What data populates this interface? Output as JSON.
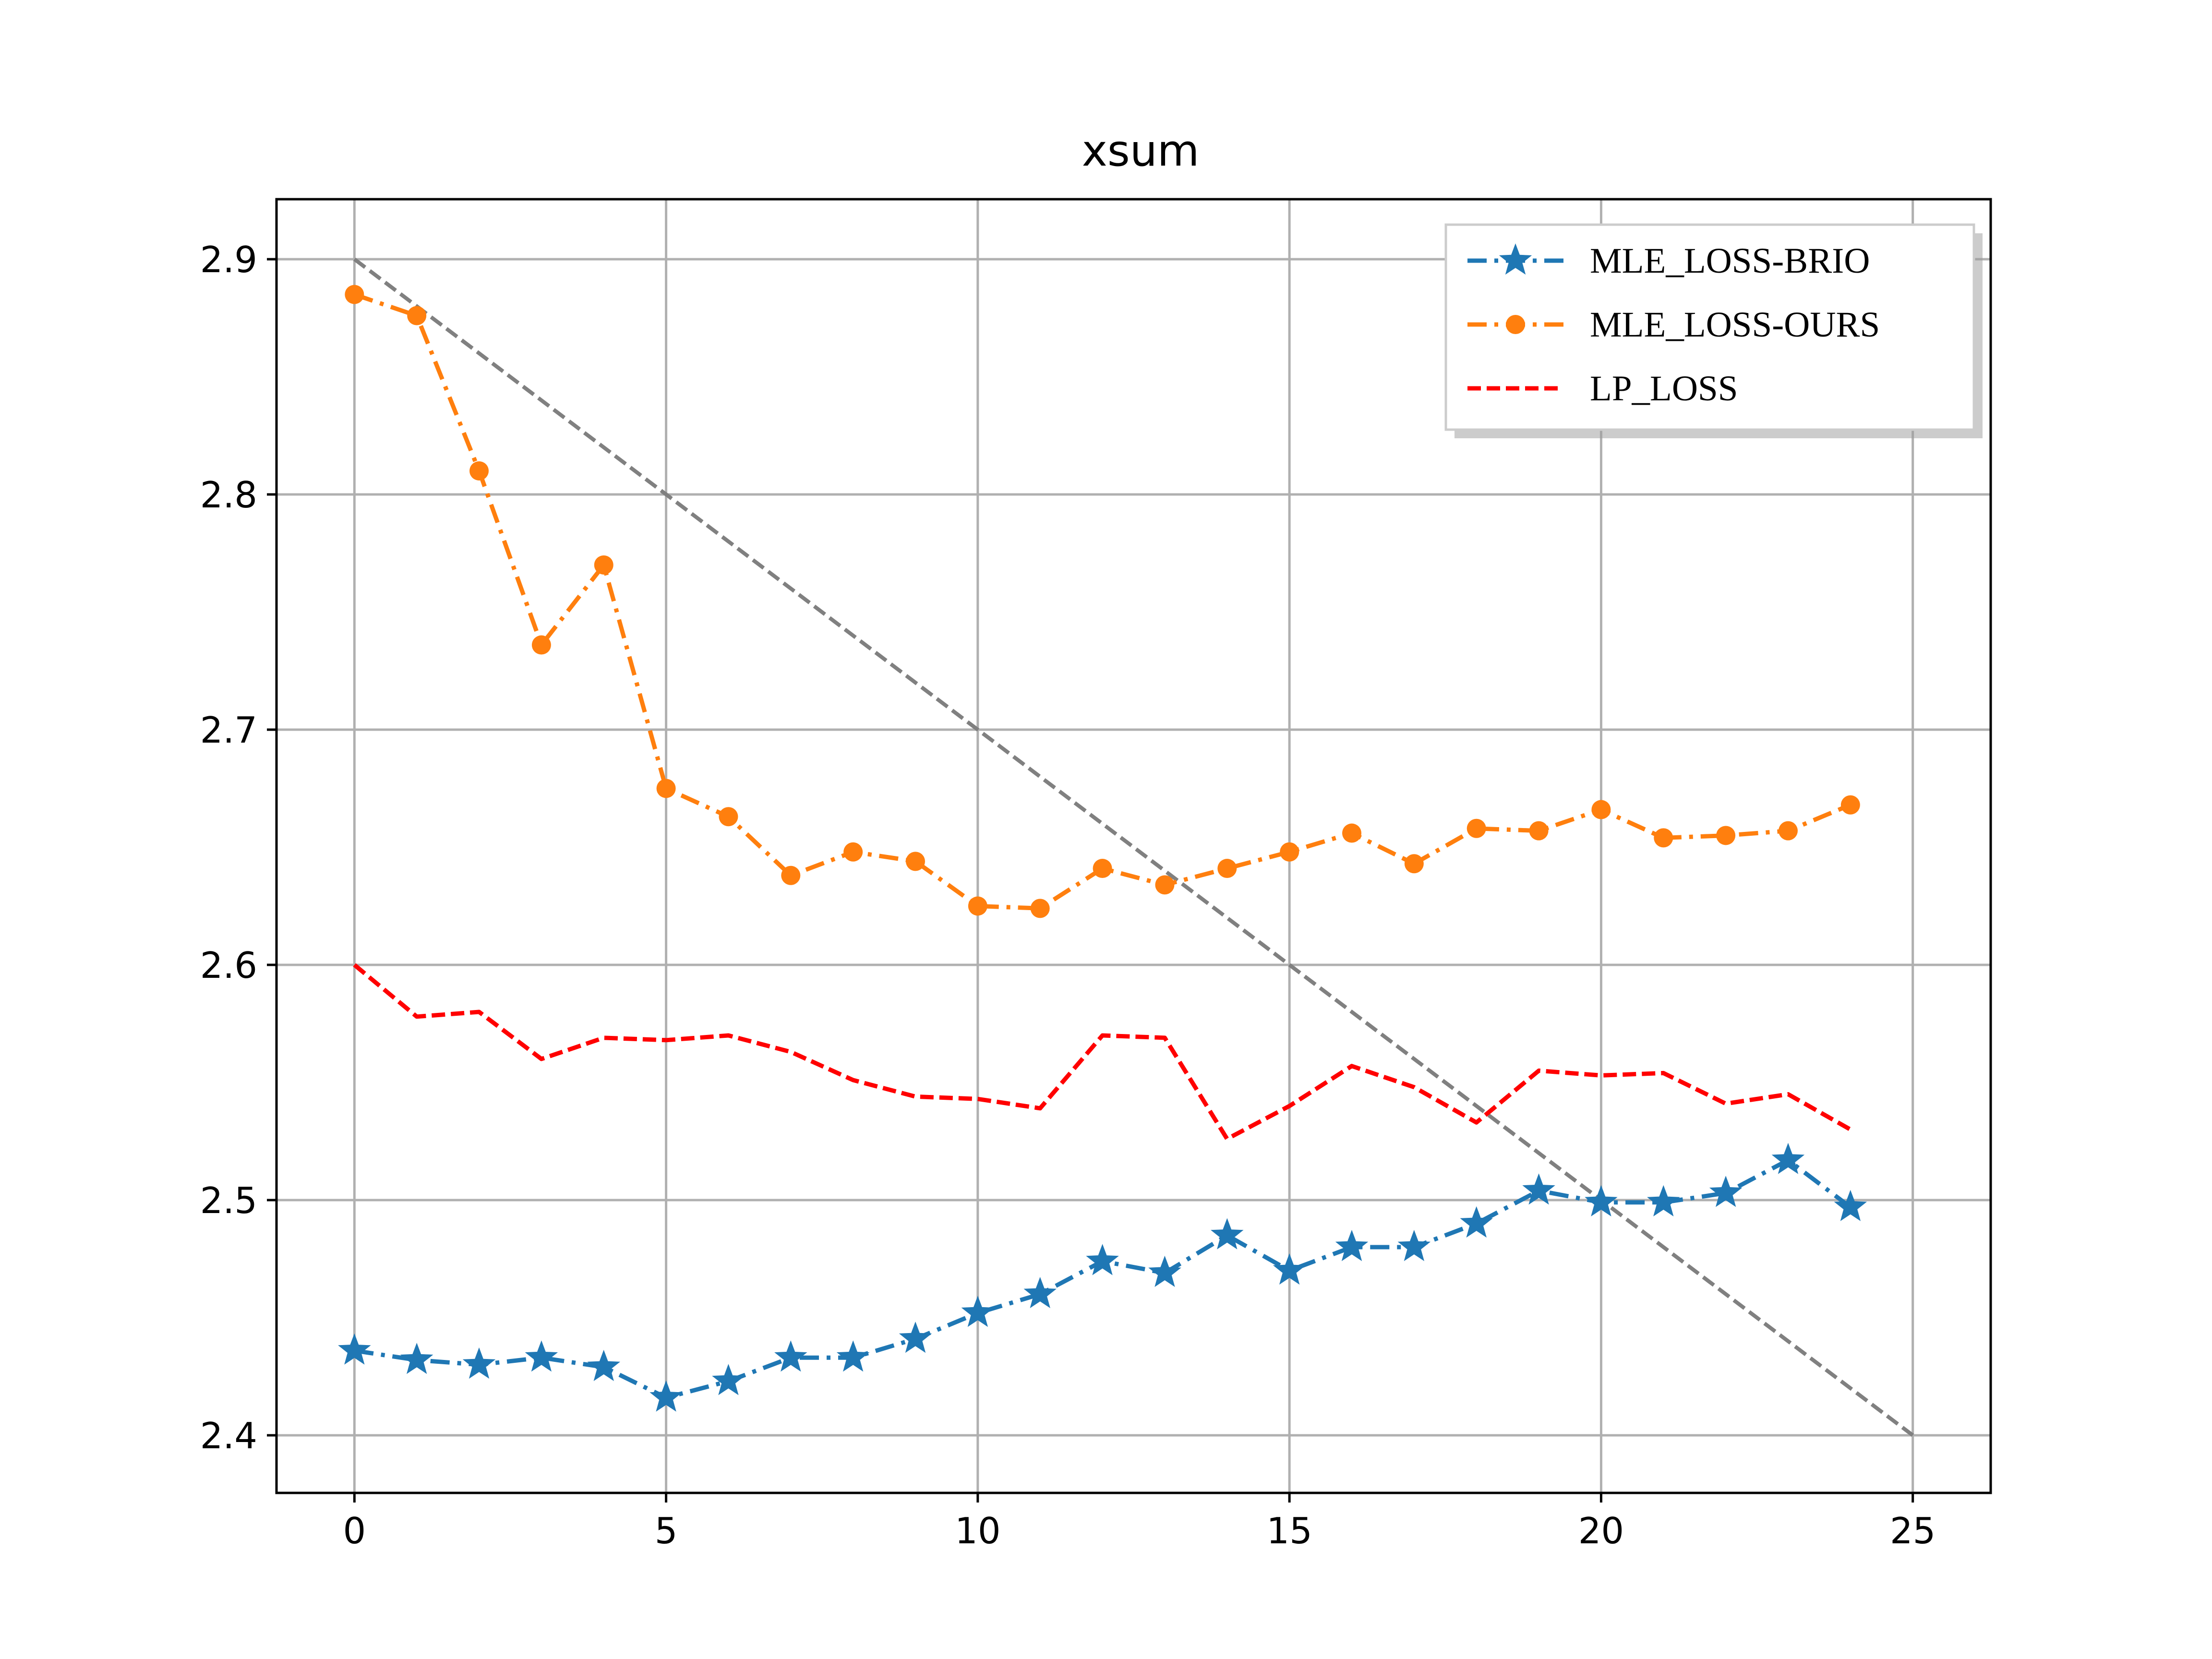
{
  "chart_data": {
    "type": "line",
    "title": "xsum",
    "xlabel": "",
    "ylabel": "",
    "xlim": [
      -1.25,
      26.25
    ],
    "ylim": [
      2.3755,
      2.9255
    ],
    "xticks": [
      0,
      5,
      10,
      15,
      20,
      25
    ],
    "yticks": [
      2.4,
      2.5,
      2.6,
      2.7,
      2.8,
      2.9
    ],
    "xtick_labels": [
      "0",
      "5",
      "10",
      "15",
      "20",
      "25"
    ],
    "ytick_labels": [
      "2.4",
      "2.5",
      "2.6",
      "2.7",
      "2.8",
      "2.9"
    ],
    "grid": true,
    "legend_position": "top-right",
    "x": [
      0,
      1,
      2,
      3,
      4,
      5,
      6,
      7,
      8,
      9,
      10,
      11,
      12,
      13,
      14,
      15,
      16,
      17,
      18,
      19,
      20,
      21,
      22,
      23,
      24
    ],
    "series": [
      {
        "name": "MLE_LOSS-BRIO",
        "color": "#1f77b4",
        "marker": "star",
        "linestyle": "dash-dot",
        "values": [
          2.436,
          2.432,
          2.43,
          2.433,
          2.429,
          2.416,
          2.423,
          2.433,
          2.433,
          2.441,
          2.452,
          2.46,
          2.474,
          2.469,
          2.485,
          2.47,
          2.48,
          2.48,
          2.49,
          2.504,
          2.499,
          2.499,
          2.503,
          2.517,
          2.497
        ]
      },
      {
        "name": "MLE_LOSS-OURS",
        "color": "#ff7f0e",
        "marker": "circle",
        "linestyle": "dash-dot",
        "values": [
          2.885,
          2.876,
          2.81,
          2.736,
          2.77,
          2.675,
          2.663,
          2.638,
          2.648,
          2.644,
          2.625,
          2.624,
          2.641,
          2.634,
          2.641,
          2.648,
          2.656,
          2.643,
          2.658,
          2.657,
          2.666,
          2.654,
          2.655,
          2.657,
          2.668
        ]
      },
      {
        "name": "LP_LOSS",
        "color": "#ff0000",
        "marker": "none",
        "linestyle": "dashed",
        "values": [
          2.6,
          2.578,
          2.58,
          2.56,
          2.569,
          2.568,
          2.57,
          2.563,
          2.551,
          2.544,
          2.543,
          2.539,
          2.57,
          2.569,
          2.526,
          2.54,
          2.557,
          2.548,
          2.533,
          2.555,
          2.553,
          2.554,
          2.541,
          2.545,
          2.53
        ]
      }
    ],
    "reference_line": {
      "color": "#808080",
      "linestyle": "dashed",
      "x": [
        0,
        25
      ],
      "y": [
        2.9,
        2.4
      ]
    }
  }
}
